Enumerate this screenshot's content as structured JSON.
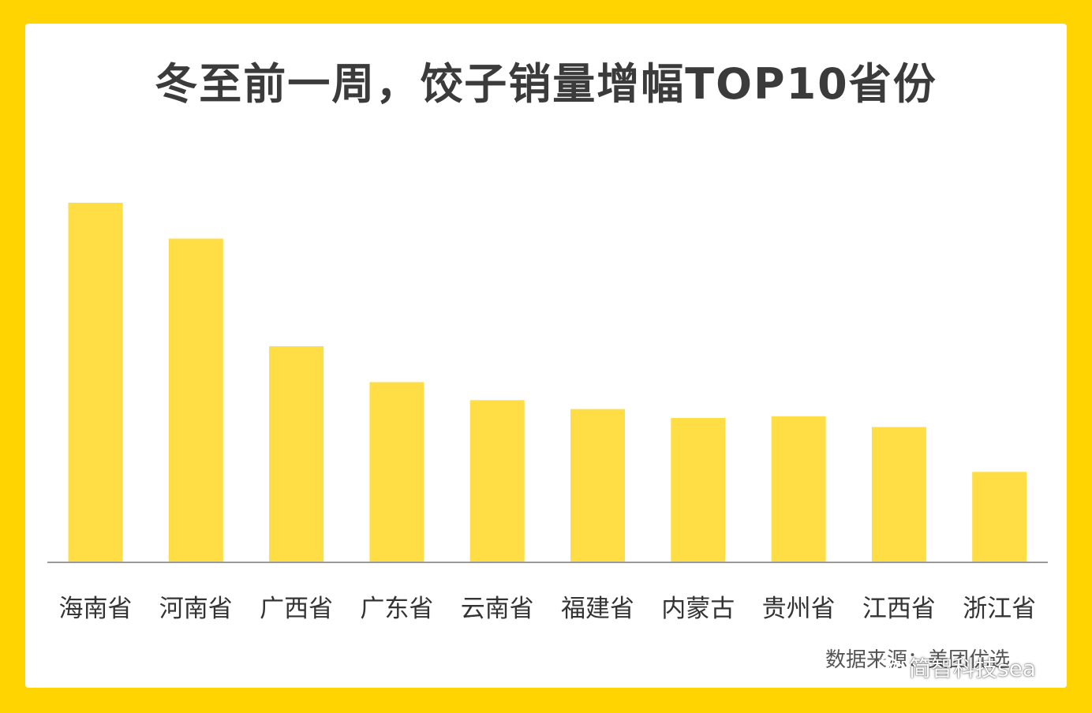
{
  "title": "冬至前一周，饺子销量增幅TOP10省份",
  "source": "数据来源：美团优选",
  "watermark": {
    "text": "简智科技sea",
    "icon": "wechat-icon"
  },
  "colors": {
    "frame": "#ffd400",
    "bar": "#ffde45",
    "axis": "#9a9a9a"
  },
  "chart_data": {
    "type": "bar",
    "title": "冬至前一周，饺子销量增幅TOP10省份",
    "categories": [
      "海南省",
      "河南省",
      "广西省",
      "广东省",
      "云南省",
      "福建省",
      "内蒙古",
      "贵州省",
      "江西省",
      "浙江省"
    ],
    "values": [
      100,
      90,
      60,
      50,
      45,
      42.5,
      40,
      40.5,
      37.5,
      25
    ],
    "grid": false,
    "legend": "none",
    "ylim": [
      0,
      100
    ]
  }
}
